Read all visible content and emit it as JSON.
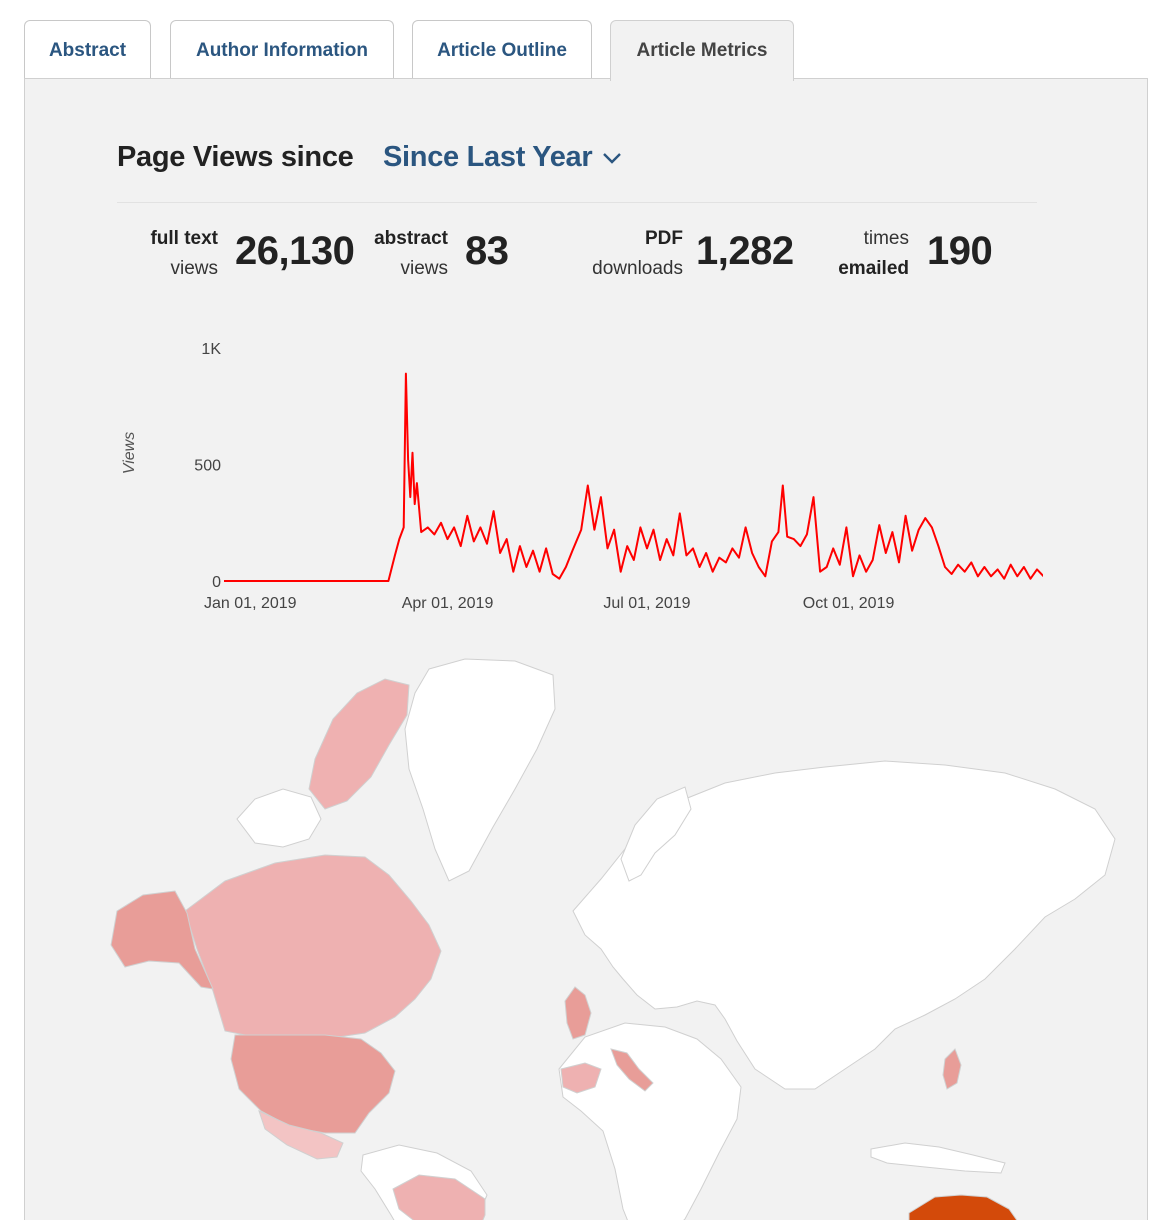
{
  "tabs": [
    {
      "label": "Abstract",
      "active": false
    },
    {
      "label": "Author Information",
      "active": false
    },
    {
      "label": "Article Outline",
      "active": false
    },
    {
      "label": "Article Metrics",
      "active": true
    }
  ],
  "page_views": {
    "title": "Page Views since",
    "period": "Since Last Year"
  },
  "stats": {
    "full_text": {
      "line1": "full text",
      "line2": "views",
      "value": "26,130"
    },
    "abstract": {
      "line1": "abstract",
      "line2": "views",
      "value": "83"
    },
    "pdf": {
      "line1": "PDF",
      "line2": "downloads",
      "value": "1,282"
    },
    "emailed": {
      "line1": "times",
      "line2": "emailed",
      "value": "190"
    }
  },
  "chart_data": {
    "type": "line",
    "ylabel": "Views",
    "ylim": [
      0,
      1000
    ],
    "yticks": [
      {
        "value": 0,
        "label": "0"
      },
      {
        "value": 500,
        "label": "500"
      },
      {
        "value": 1000,
        "label": "1K"
      }
    ],
    "xticks": [
      "Jan 01, 2019",
      "Apr 01, 2019",
      "Jul 01, 2019",
      "Oct 01, 2019"
    ],
    "x_start": "2018-12-20",
    "x_end": "2019-12-31",
    "line_color": "#ff0000",
    "series": [
      {
        "points": [
          [
            "2018-12-20",
            0
          ],
          [
            "2019-03-05",
            0
          ],
          [
            "2019-03-08",
            110
          ],
          [
            "2019-03-10",
            180
          ],
          [
            "2019-03-12",
            230
          ],
          [
            "2019-03-13",
            890
          ],
          [
            "2019-03-14",
            520
          ],
          [
            "2019-03-15",
            360
          ],
          [
            "2019-03-16",
            550
          ],
          [
            "2019-03-17",
            330
          ],
          [
            "2019-03-18",
            420
          ],
          [
            "2019-03-20",
            210
          ],
          [
            "2019-03-23",
            230
          ],
          [
            "2019-03-26",
            200
          ],
          [
            "2019-03-29",
            250
          ],
          [
            "2019-04-01",
            180
          ],
          [
            "2019-04-04",
            230
          ],
          [
            "2019-04-07",
            150
          ],
          [
            "2019-04-10",
            280
          ],
          [
            "2019-04-13",
            170
          ],
          [
            "2019-04-16",
            230
          ],
          [
            "2019-04-19",
            160
          ],
          [
            "2019-04-22",
            300
          ],
          [
            "2019-04-25",
            120
          ],
          [
            "2019-04-28",
            180
          ],
          [
            "2019-05-01",
            40
          ],
          [
            "2019-05-04",
            150
          ],
          [
            "2019-05-07",
            60
          ],
          [
            "2019-05-10",
            130
          ],
          [
            "2019-05-13",
            40
          ],
          [
            "2019-05-16",
            140
          ],
          [
            "2019-05-19",
            30
          ],
          [
            "2019-05-22",
            10
          ],
          [
            "2019-05-25",
            60
          ],
          [
            "2019-05-28",
            130
          ],
          [
            "2019-06-01",
            220
          ],
          [
            "2019-06-04",
            410
          ],
          [
            "2019-06-07",
            220
          ],
          [
            "2019-06-10",
            360
          ],
          [
            "2019-06-13",
            140
          ],
          [
            "2019-06-16",
            220
          ],
          [
            "2019-06-19",
            40
          ],
          [
            "2019-06-22",
            150
          ],
          [
            "2019-06-25",
            90
          ],
          [
            "2019-06-28",
            230
          ],
          [
            "2019-07-01",
            140
          ],
          [
            "2019-07-04",
            220
          ],
          [
            "2019-07-07",
            90
          ],
          [
            "2019-07-10",
            180
          ],
          [
            "2019-07-13",
            110
          ],
          [
            "2019-07-16",
            290
          ],
          [
            "2019-07-19",
            110
          ],
          [
            "2019-07-22",
            140
          ],
          [
            "2019-07-25",
            60
          ],
          [
            "2019-07-28",
            120
          ],
          [
            "2019-07-31",
            40
          ],
          [
            "2019-08-03",
            100
          ],
          [
            "2019-08-06",
            80
          ],
          [
            "2019-08-09",
            140
          ],
          [
            "2019-08-12",
            100
          ],
          [
            "2019-08-15",
            230
          ],
          [
            "2019-08-18",
            120
          ],
          [
            "2019-08-21",
            60
          ],
          [
            "2019-08-24",
            20
          ],
          [
            "2019-08-27",
            170
          ],
          [
            "2019-08-30",
            210
          ],
          [
            "2019-09-01",
            410
          ],
          [
            "2019-09-03",
            190
          ],
          [
            "2019-09-06",
            180
          ],
          [
            "2019-09-09",
            150
          ],
          [
            "2019-09-12",
            200
          ],
          [
            "2019-09-15",
            360
          ],
          [
            "2019-09-18",
            40
          ],
          [
            "2019-09-21",
            60
          ],
          [
            "2019-09-24",
            140
          ],
          [
            "2019-09-27",
            70
          ],
          [
            "2019-09-30",
            230
          ],
          [
            "2019-10-03",
            20
          ],
          [
            "2019-10-06",
            110
          ],
          [
            "2019-10-09",
            40
          ],
          [
            "2019-10-12",
            90
          ],
          [
            "2019-10-15",
            240
          ],
          [
            "2019-10-18",
            120
          ],
          [
            "2019-10-21",
            210
          ],
          [
            "2019-10-24",
            80
          ],
          [
            "2019-10-27",
            280
          ],
          [
            "2019-10-30",
            130
          ],
          [
            "2019-11-02",
            220
          ],
          [
            "2019-11-05",
            270
          ],
          [
            "2019-11-08",
            230
          ],
          [
            "2019-11-11",
            150
          ],
          [
            "2019-11-14",
            60
          ],
          [
            "2019-11-17",
            30
          ],
          [
            "2019-11-20",
            70
          ],
          [
            "2019-11-23",
            40
          ],
          [
            "2019-11-26",
            80
          ],
          [
            "2019-11-29",
            20
          ],
          [
            "2019-12-02",
            60
          ],
          [
            "2019-12-05",
            20
          ],
          [
            "2019-12-08",
            50
          ],
          [
            "2019-12-11",
            10
          ],
          [
            "2019-12-14",
            70
          ],
          [
            "2019-12-17",
            20
          ],
          [
            "2019-12-20",
            60
          ],
          [
            "2019-12-23",
            10
          ],
          [
            "2019-12-26",
            50
          ],
          [
            "2019-12-29",
            20
          ]
        ]
      }
    ]
  },
  "map": {
    "land_color": "#ffffff",
    "border_color": "#d0d0d0",
    "water_color": "#f2f2f2",
    "regions": [
      {
        "id": "canada-arctic",
        "fill": "#efb1b1"
      },
      {
        "id": "canada",
        "fill": "#eeb1b1"
      },
      {
        "id": "alaska",
        "fill": "#e89d98"
      },
      {
        "id": "united-states",
        "fill": "#e89d98"
      },
      {
        "id": "mexico",
        "fill": "#f3c4c4"
      },
      {
        "id": "brazil",
        "fill": "#eeb1b1"
      },
      {
        "id": "united-kingdom",
        "fill": "#e89d98"
      },
      {
        "id": "spain",
        "fill": "#eeb1b1"
      },
      {
        "id": "italy",
        "fill": "#e89d98"
      },
      {
        "id": "japan",
        "fill": "#e89d98"
      },
      {
        "id": "australia",
        "fill": "#d34a0a"
      }
    ]
  }
}
